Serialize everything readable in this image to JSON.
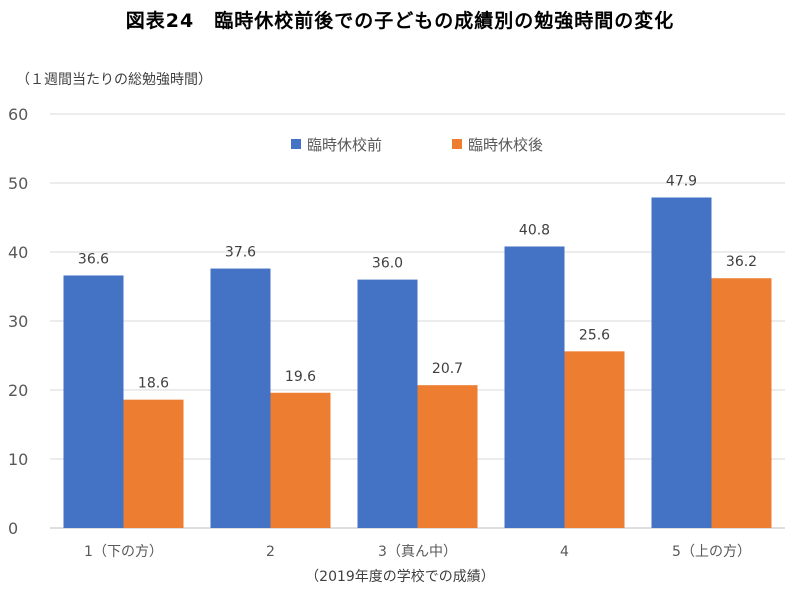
{
  "chart_data": {
    "type": "bar",
    "title": "図表24　臨時休校前後での子どもの成績別の勉強時間の変化",
    "ylabel": "（１週間当たりの総勉強時間）",
    "xlabel": "（2019年度の学校での成績）",
    "categories": [
      "1（下の方）",
      "2",
      "3（真ん中）",
      "4",
      "5（上の方）"
    ],
    "series": [
      {
        "name": "臨時休校前",
        "color": "#4472C4",
        "values": [
          36.6,
          37.6,
          36.0,
          40.8,
          47.9
        ]
      },
      {
        "name": "臨時休校後",
        "color": "#ED7D31",
        "values": [
          18.6,
          19.6,
          20.7,
          25.6,
          36.2
        ]
      }
    ],
    "ylim": [
      0,
      60
    ],
    "yticks": [
      0,
      10,
      20,
      30,
      40,
      50,
      60
    ],
    "grid": true,
    "legend": "top-center",
    "value_format": "0.0"
  }
}
